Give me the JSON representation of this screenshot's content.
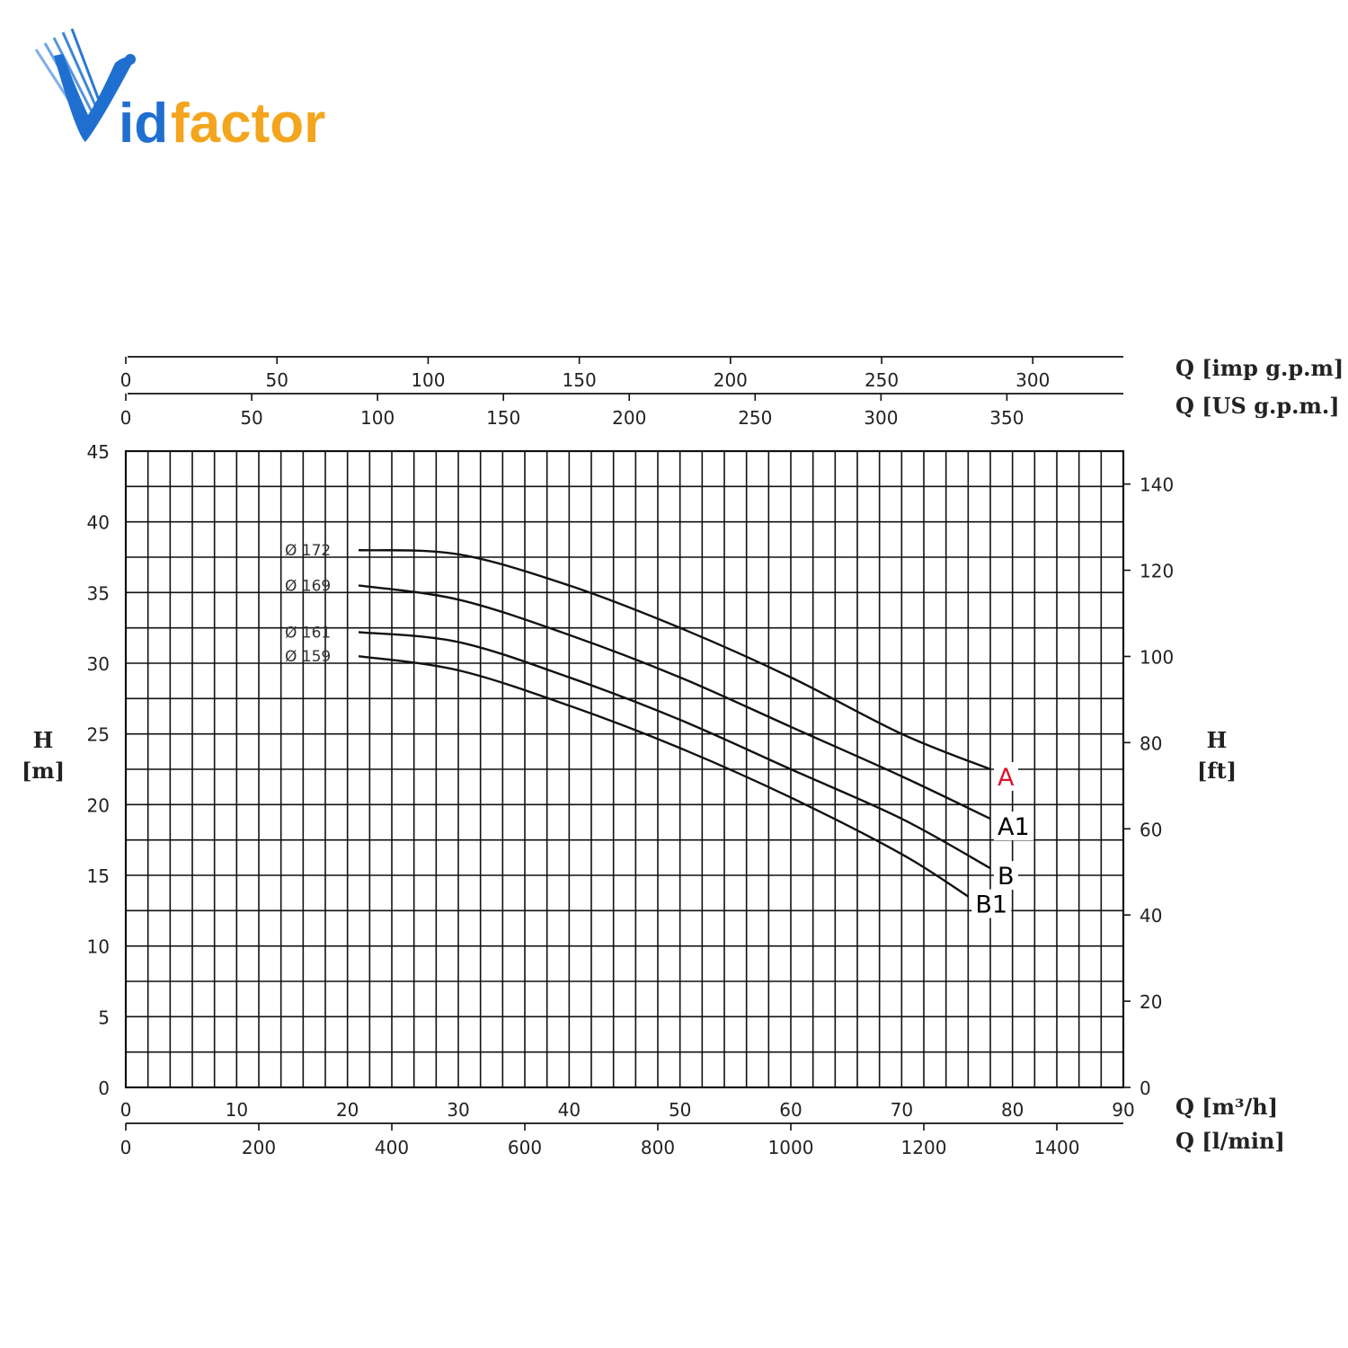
{
  "logo": {
    "text_prefix": "V",
    "text_mid": "id",
    "text_suffix": "factor",
    "color_blue": "#1f6fd0",
    "color_orange": "#f3a51e"
  },
  "chart_data": {
    "type": "line",
    "x_unit_label": "Q [m³/h]",
    "x_alt_label": "Q [l/min]",
    "top_axis_1_label": "Q [imp g.p.m]",
    "top_axis_2_label": "Q [US g.p.m.]",
    "ylabel_left": "H",
    "ylabel_left_unit": "[m]",
    "ylabel_right": "H",
    "ylabel_right_unit": "[ft]",
    "xlim": [
      0,
      90
    ],
    "ylim": [
      0,
      45
    ],
    "grid": true,
    "x_ticks": [
      0,
      10,
      20,
      30,
      40,
      50,
      60,
      70,
      80,
      90
    ],
    "x_alt_ticks": [
      0,
      200,
      400,
      600,
      800,
      1000,
      1200,
      1400
    ],
    "top_imp_ticks": [
      0,
      50,
      100,
      150,
      200,
      250,
      300
    ],
    "top_us_ticks": [
      0,
      50,
      100,
      150,
      200,
      250,
      300,
      350
    ],
    "y_ticks": [
      0,
      5,
      10,
      15,
      20,
      25,
      30,
      35,
      40,
      45
    ],
    "y_ft_ticks": [
      0,
      20,
      40,
      60,
      80,
      100,
      120,
      140
    ],
    "series": [
      {
        "name": "A",
        "diameter_label": "Ø 172",
        "label_color": "#e0102a",
        "x": [
          21,
          30,
          40,
          50,
          60,
          70,
          78
        ],
        "y": [
          38,
          37.7,
          35.5,
          32.5,
          29,
          25,
          22.5
        ]
      },
      {
        "name": "A1",
        "diameter_label": "Ø 169",
        "label_color": "#000000",
        "x": [
          21,
          30,
          40,
          50,
          60,
          70,
          78
        ],
        "y": [
          35.5,
          34.5,
          32,
          29,
          25.5,
          22,
          19
        ]
      },
      {
        "name": "B",
        "diameter_label": "Ø 161",
        "label_color": "#000000",
        "x": [
          21,
          30,
          40,
          50,
          60,
          70,
          78
        ],
        "y": [
          32.2,
          31.5,
          29,
          26,
          22.5,
          19,
          15.5
        ]
      },
      {
        "name": "B1",
        "diameter_label": "Ø 159",
        "label_color": "#000000",
        "x": [
          21,
          30,
          40,
          50,
          60,
          70,
          76
        ],
        "y": [
          30.5,
          29.5,
          27,
          24,
          20.5,
          16.5,
          13.5
        ]
      }
    ]
  }
}
